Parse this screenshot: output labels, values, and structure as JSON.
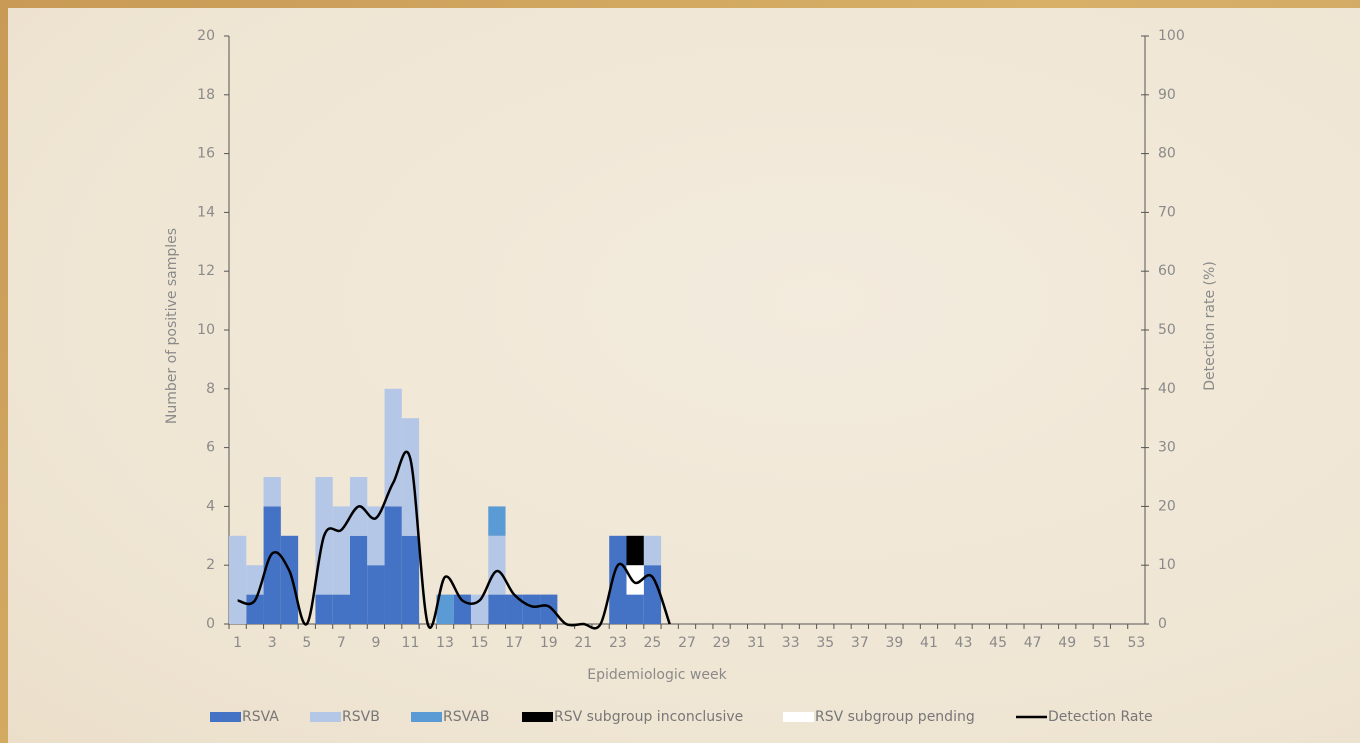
{
  "chart_data": {
    "type": "bar",
    "xlabel": "Epidemiologic week",
    "ylabel": "Number of positive samples",
    "y2label": "Detection rate (%)",
    "categories": [
      1,
      null,
      3,
      null,
      5,
      null,
      7,
      null,
      9,
      null,
      11,
      null,
      13,
      null,
      15,
      null,
      17,
      null,
      19,
      null,
      21,
      null,
      23,
      null,
      25,
      null,
      27,
      null,
      29,
      null,
      31,
      null,
      33,
      null,
      35,
      null,
      37,
      null,
      39,
      null,
      41,
      null,
      43,
      null,
      45,
      null,
      47,
      null,
      49,
      null,
      51,
      null,
      53
    ],
    "ylim": [
      0,
      20
    ],
    "yticks": [
      0,
      2,
      4,
      6,
      8,
      10,
      12,
      14,
      16,
      18,
      20
    ],
    "y2lim": [
      0,
      100
    ],
    "y2ticks": [
      0,
      10,
      20,
      30,
      40,
      50,
      60,
      70,
      80,
      90,
      100
    ],
    "stacked": true,
    "series": [
      {
        "name": "RSVA",
        "color": "#4472c4",
        "values": [
          0,
          1,
          4,
          3,
          0,
          1,
          1,
          3,
          2,
          4,
          3,
          0,
          0,
          1,
          0,
          1,
          1,
          1,
          1,
          0,
          0,
          0,
          3,
          1,
          2,
          0,
          0,
          0,
          0,
          0,
          0,
          0,
          0,
          0,
          0,
          0,
          0,
          0,
          0,
          0,
          0,
          0,
          0,
          0,
          0,
          0,
          0,
          0,
          0,
          0,
          0,
          0,
          0
        ]
      },
      {
        "name": "RSVB",
        "color": "#b4c7e7",
        "values": [
          3,
          1,
          1,
          0,
          0,
          4,
          3,
          2,
          2,
          4,
          4,
          0,
          0,
          0,
          1,
          2,
          0,
          0,
          0,
          0,
          0,
          0,
          0,
          0,
          1,
          0,
          0,
          0,
          0,
          0,
          0,
          0,
          0,
          0,
          0,
          0,
          0,
          0,
          0,
          0,
          0,
          0,
          0,
          0,
          0,
          0,
          0,
          0,
          0,
          0,
          0,
          0,
          0
        ]
      },
      {
        "name": "RSVAB",
        "color": "#5b9bd5",
        "values": [
          0,
          0,
          0,
          0,
          0,
          0,
          0,
          0,
          0,
          0,
          0,
          0,
          1,
          0,
          0,
          1,
          0,
          0,
          0,
          0,
          0,
          0,
          0,
          0,
          0,
          0,
          0,
          0,
          0,
          0,
          0,
          0,
          0,
          0,
          0,
          0,
          0,
          0,
          0,
          0,
          0,
          0,
          0,
          0,
          0,
          0,
          0,
          0,
          0,
          0,
          0,
          0,
          0
        ]
      },
      {
        "name": "RSV subgroup pending",
        "color": "#ffffff",
        "values": [
          0,
          0,
          0,
          0,
          0,
          0,
          0,
          0,
          0,
          0,
          0,
          0,
          0,
          0,
          0,
          0,
          0,
          0,
          0,
          0,
          0,
          0,
          0,
          1,
          0,
          0,
          0,
          0,
          0,
          0,
          0,
          0,
          0,
          0,
          0,
          0,
          0,
          0,
          0,
          0,
          0,
          0,
          0,
          0,
          0,
          0,
          0,
          0,
          0,
          0,
          0,
          0,
          0
        ]
      },
      {
        "name": "RSV subgroup inconclusive",
        "color": "#000000",
        "values": [
          0,
          0,
          0,
          0,
          0,
          0,
          0,
          0,
          0,
          0,
          0,
          0,
          0,
          0,
          0,
          0,
          0,
          0,
          0,
          0,
          0,
          0,
          0,
          1,
          0,
          0,
          0,
          0,
          0,
          0,
          0,
          0,
          0,
          0,
          0,
          0,
          0,
          0,
          0,
          0,
          0,
          0,
          0,
          0,
          0,
          0,
          0,
          0,
          0,
          0,
          0,
          0,
          0
        ]
      },
      {
        "name": "Detection Rate",
        "type": "line",
        "axis": "y2",
        "color": "#000000",
        "values": [
          4,
          4,
          12,
          9,
          0,
          15,
          16,
          20,
          18,
          24,
          28,
          0,
          8,
          4,
          4,
          9,
          5,
          3,
          3,
          0,
          0,
          0,
          10,
          7,
          8,
          0,
          null,
          null,
          null,
          null,
          null,
          null,
          null,
          null,
          null,
          null,
          null,
          null,
          null,
          null,
          null,
          null,
          null,
          null,
          null,
          null,
          null,
          null,
          null,
          null,
          null,
          null,
          null
        ]
      }
    ]
  }
}
